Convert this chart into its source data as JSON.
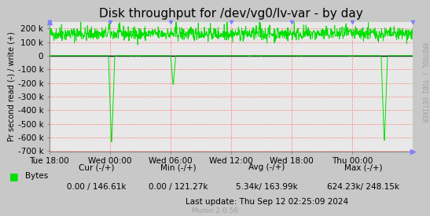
{
  "title": "Disk throughput for /dev/vg0/lv-var - by day",
  "ylabel": "Pr second read (-) / write (+)",
  "background_color": "#c8c8c8",
  "plot_bg_color": "#e8e8e8",
  "grid_color": "#ff8080",
  "line_color_green": "#00e000",
  "line_color_black": "#000000",
  "ylim": [
    -700000,
    250000
  ],
  "yticks": [
    -700000,
    -600000,
    -500000,
    -400000,
    -300000,
    -200000,
    -100000,
    0,
    100000,
    200000
  ],
  "ytick_labels": [
    "-700 k",
    "-600 k",
    "-500 k",
    "-400 k",
    "-300 k",
    "-200 k",
    "-100 k",
    "0",
    "100 k",
    "200 k"
  ],
  "xtick_labels": [
    "Tue 18:00",
    "Wed 00:00",
    "Wed 06:00",
    "Wed 12:00",
    "Wed 18:00",
    "Thu 00:00"
  ],
  "legend_label": "Bytes",
  "cur_label": "Cur (-/+)",
  "cur_value": "0.00 / 146.61k",
  "min_label": "Min (-/+)",
  "min_value": "0.00 / 121.27k",
  "avg_label": "Avg (-/+)",
  "avg_value": "5.34k/ 163.99k",
  "max_label": "Max (-/+)",
  "max_value": "624.23k/ 248.15k",
  "last_update": "Last update: Thu Sep 12 02:25:09 2024",
  "munin_version": "Munin 2.0.56",
  "watermark": "RRDTOOL / TOBI OETIKER",
  "title_fontsize": 11,
  "axis_fontsize": 7.5,
  "legend_fontsize": 7.5
}
